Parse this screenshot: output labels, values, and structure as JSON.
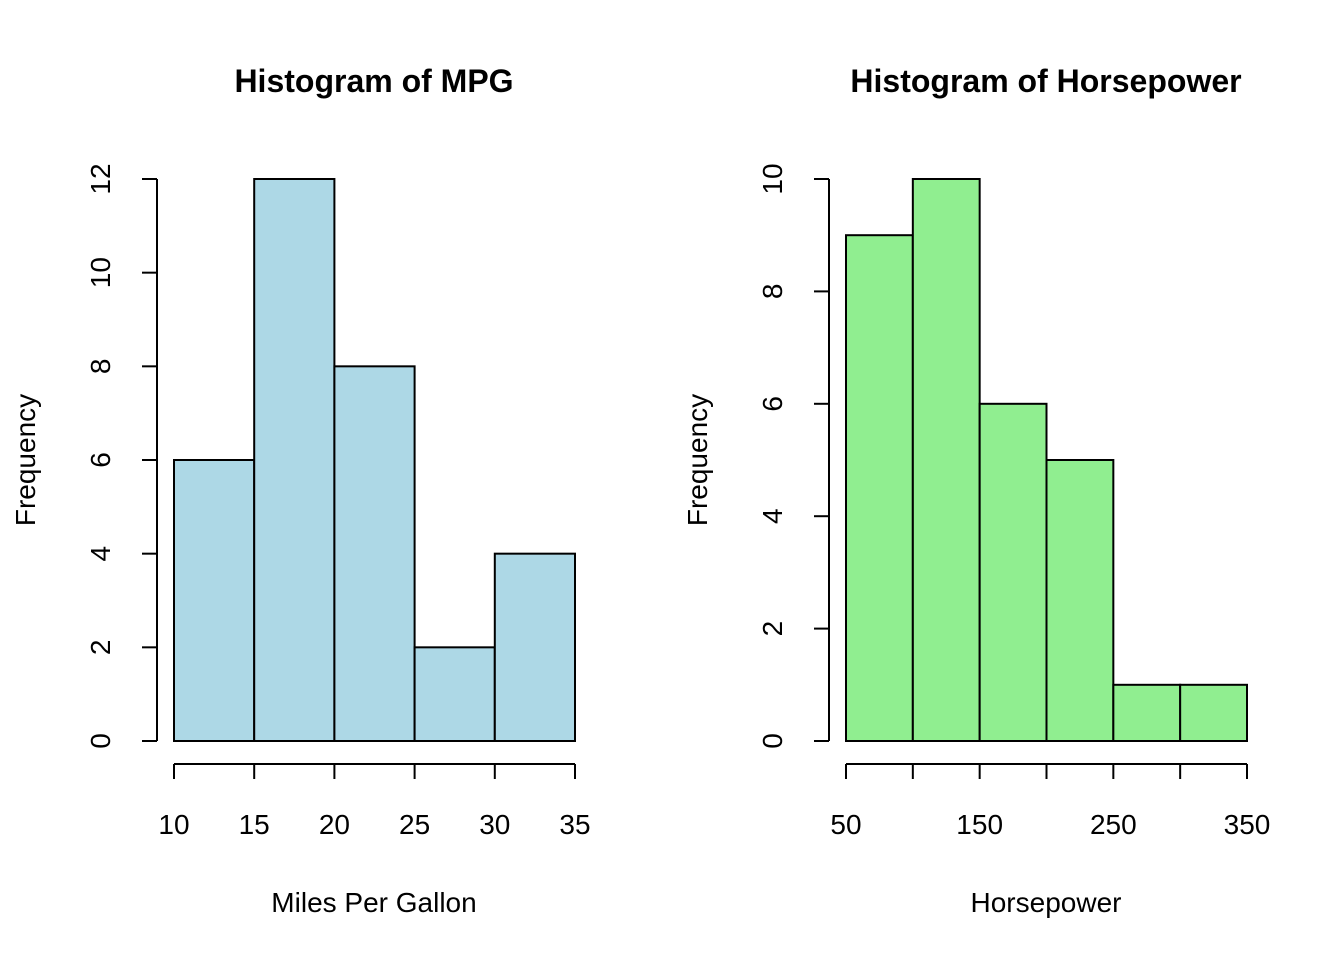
{
  "chart_data": [
    {
      "type": "bar",
      "title": "Histogram of MPG",
      "xlabel": "Miles Per Gallon",
      "ylabel": "Frequency",
      "bins": [
        [
          10,
          15
        ],
        [
          15,
          20
        ],
        [
          20,
          25
        ],
        [
          25,
          30
        ],
        [
          30,
          35
        ]
      ],
      "values": [
        6,
        12,
        8,
        2,
        4
      ],
      "xticks": [
        10,
        15,
        20,
        25,
        30,
        35
      ],
      "yticks": [
        0,
        2,
        4,
        6,
        8,
        10,
        12
      ],
      "xlim": [
        10,
        35
      ],
      "ylim": [
        0,
        12
      ],
      "color": "#add8e6"
    },
    {
      "type": "bar",
      "title": "Histogram of Horsepower",
      "xlabel": "Horsepower",
      "ylabel": "Frequency",
      "bins": [
        [
          50,
          100
        ],
        [
          100,
          150
        ],
        [
          150,
          200
        ],
        [
          200,
          250
        ],
        [
          250,
          300
        ],
        [
          300,
          350
        ]
      ],
      "values": [
        9,
        10,
        6,
        5,
        1,
        1
      ],
      "xticks": [
        50,
        100,
        150,
        200,
        250,
        300,
        350
      ],
      "xtick_labels": [
        "50",
        "",
        "150",
        "",
        "250",
        "",
        "350"
      ],
      "yticks": [
        0,
        2,
        4,
        6,
        8,
        10
      ],
      "xlim": [
        50,
        350
      ],
      "ylim": [
        0,
        10
      ],
      "color": "#90ee90"
    }
  ]
}
